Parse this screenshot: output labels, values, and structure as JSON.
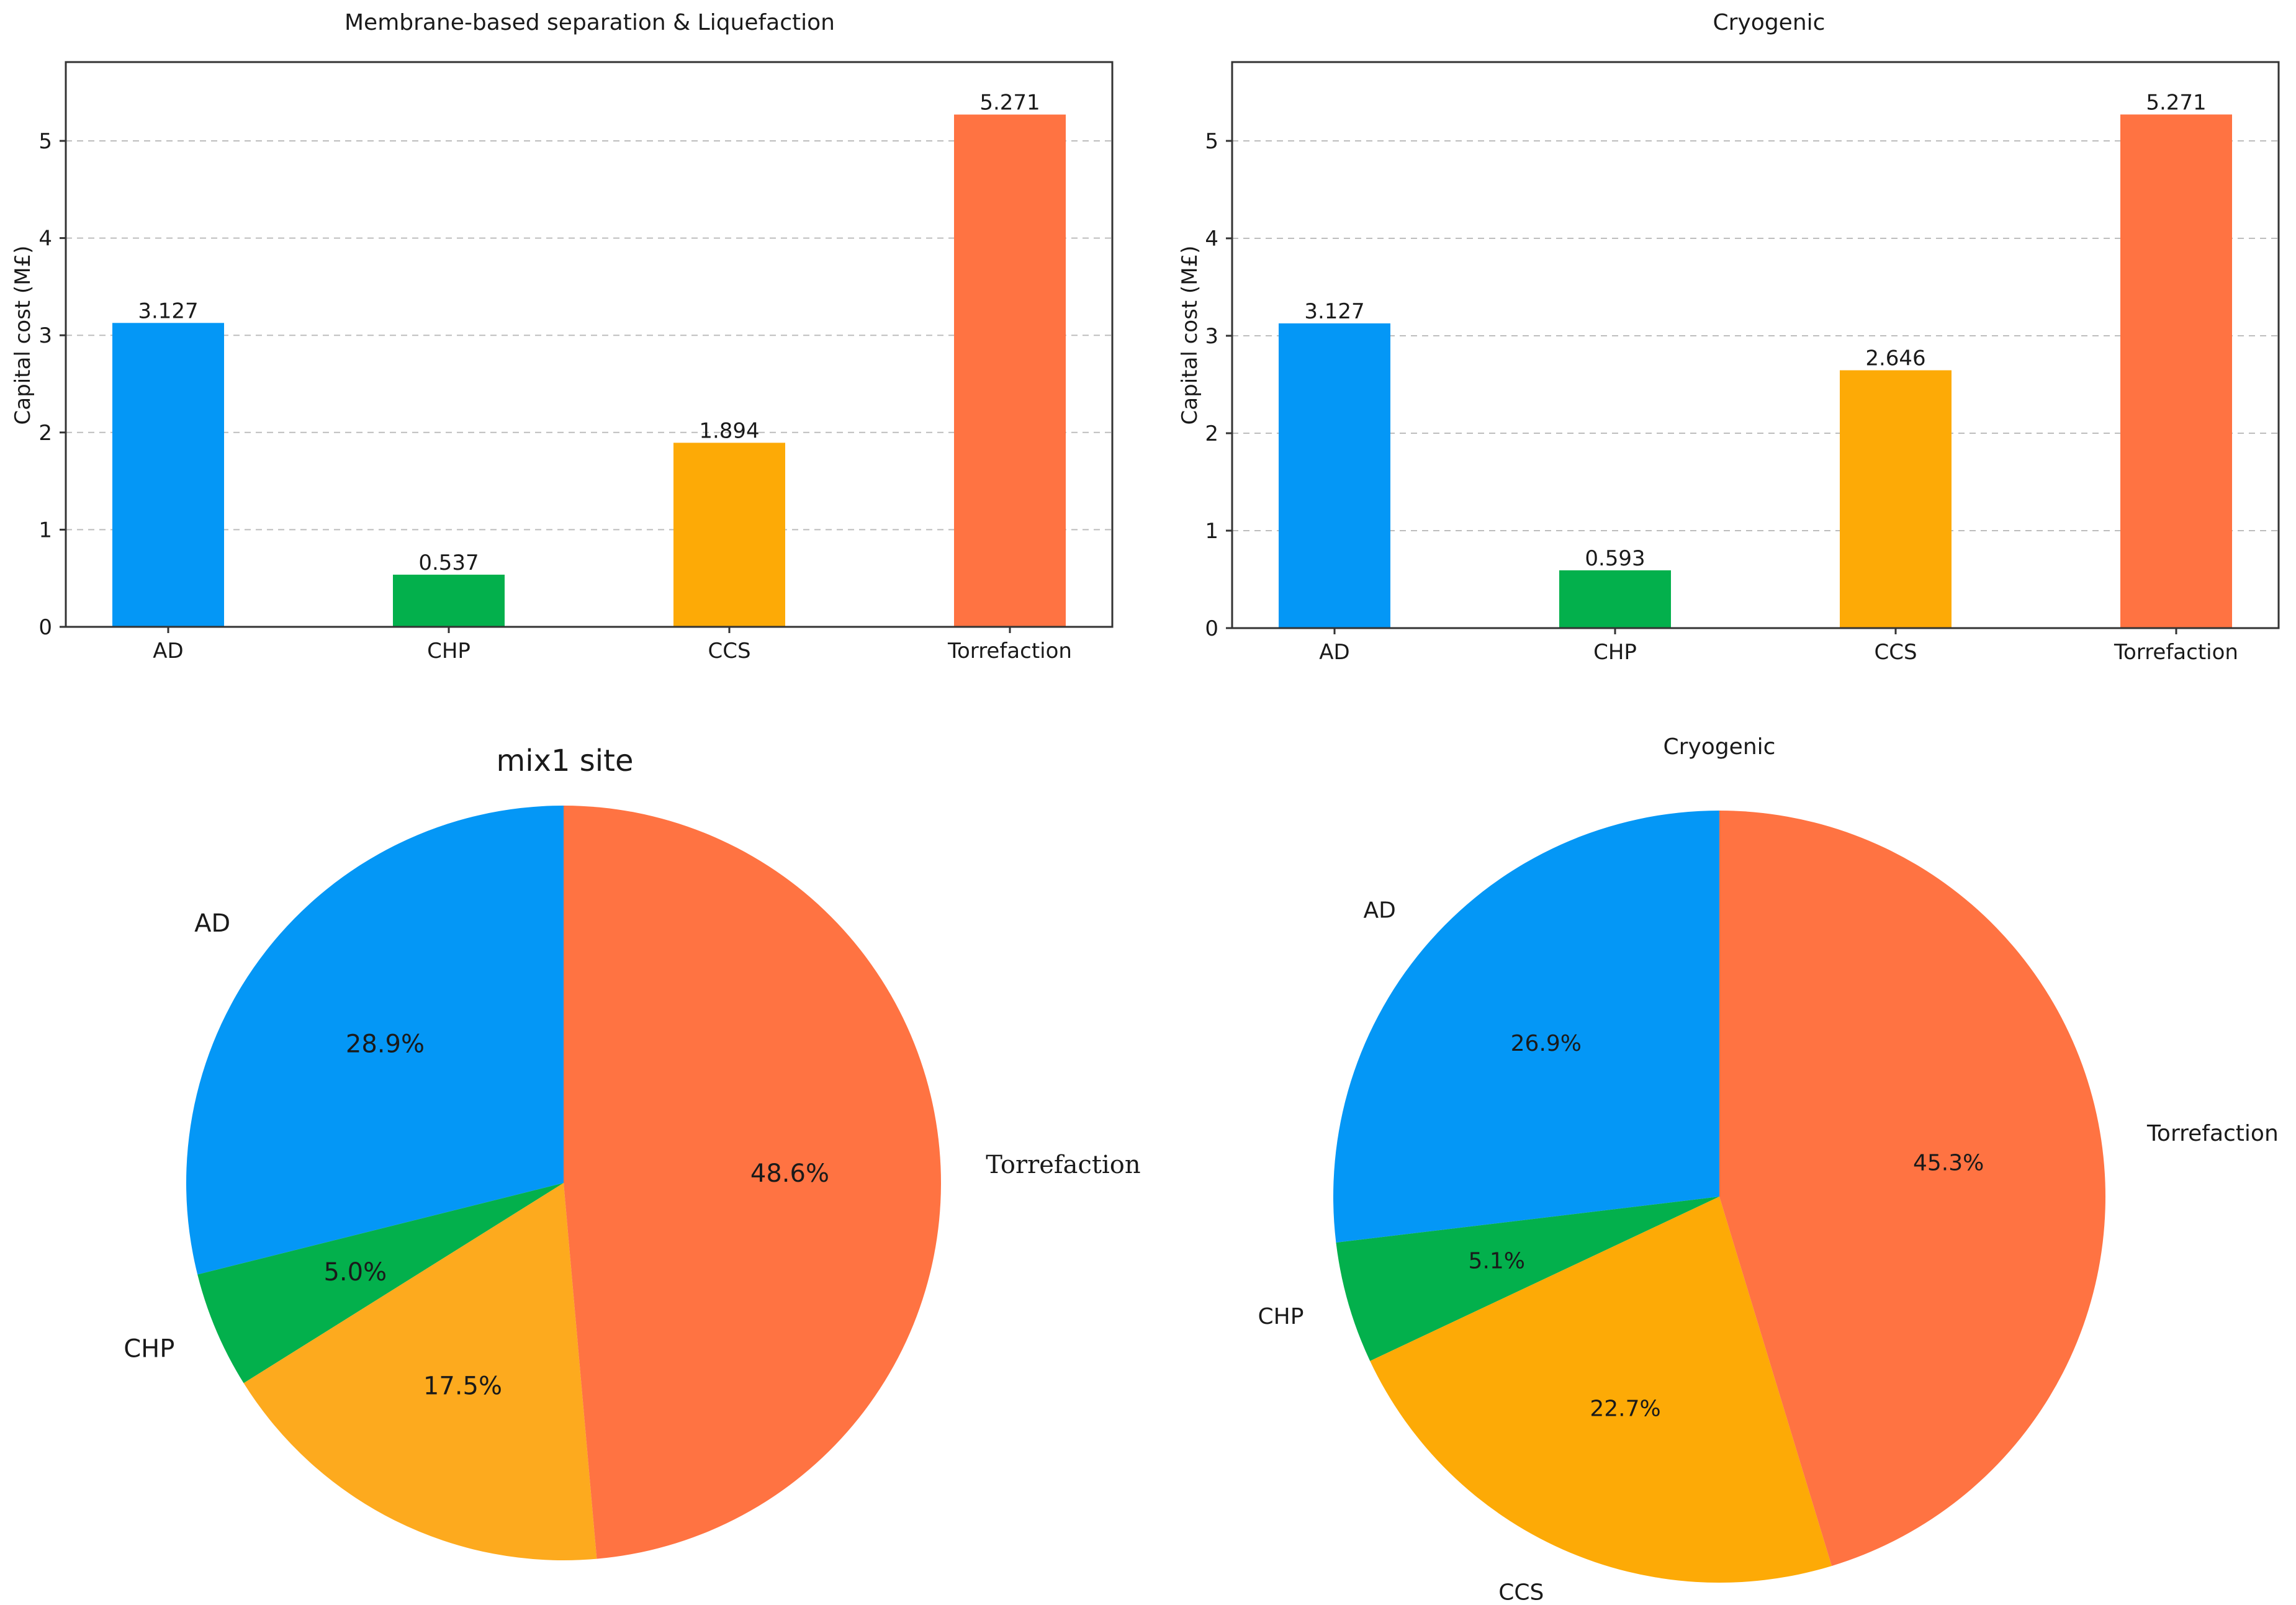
{
  "chart_data": [
    {
      "type": "bar",
      "title": "Membrane-based separation & Liquefaction",
      "xlabel": "",
      "ylabel": "Capital cost (M£)",
      "ylim": [
        0,
        5.8
      ],
      "yticks": [
        "0",
        "1",
        "2",
        "3",
        "4",
        "5"
      ],
      "grid": "horizontal-dashed",
      "categories": [
        "AD",
        "CHP",
        "CCS",
        "Torrefaction"
      ],
      "values": [
        3.127,
        0.537,
        1.894,
        5.271
      ],
      "value_labels": [
        "3.127",
        "0.537",
        "1.894",
        "5.271"
      ],
      "colors": [
        "#0497f6",
        "#03b04c",
        "#fdaa06",
        "#ff7342"
      ]
    },
    {
      "type": "bar",
      "title": "Cryogenic",
      "xlabel": "",
      "ylabel": "Capital cost (M£)",
      "ylim": [
        0,
        5.8
      ],
      "yticks": [
        "0",
        "1",
        "2",
        "3",
        "4",
        "5"
      ],
      "grid": "horizontal-dashed",
      "categories": [
        "AD",
        "CHP",
        "CCS",
        "Torrefaction"
      ],
      "values": [
        3.127,
        0.593,
        2.646,
        5.271
      ],
      "value_labels": [
        "3.127",
        "0.593",
        "2.646",
        "5.271"
      ],
      "colors": [
        "#0497f6",
        "#03b04c",
        "#fdaa06",
        "#ff7342"
      ]
    },
    {
      "type": "pie",
      "title": "mix1 site",
      "labels": [
        "AD",
        "CHP",
        "",
        "Torrefaction"
      ],
      "values": [
        28.9,
        5.0,
        17.5,
        48.6
      ],
      "pct_labels": [
        "28.9%",
        "5.0%",
        "17.5%",
        "48.6%"
      ],
      "colors": [
        "#0497f6",
        "#03b04c",
        "#fdaa1e",
        "#ff7342"
      ],
      "start_angle": 90,
      "direction": "counterclockwise"
    },
    {
      "type": "pie",
      "title": "Cryogenic",
      "labels": [
        "AD",
        "CHP",
        "CCS",
        "Torrefaction"
      ],
      "values": [
        26.9,
        5.1,
        22.7,
        45.3
      ],
      "pct_labels": [
        "26.9%",
        "5.1%",
        "22.7%",
        "45.3%"
      ],
      "colors": [
        "#0497f6",
        "#03b04c",
        "#fdaa06",
        "#ff7342"
      ],
      "start_angle": 90,
      "direction": "counterclockwise"
    }
  ]
}
